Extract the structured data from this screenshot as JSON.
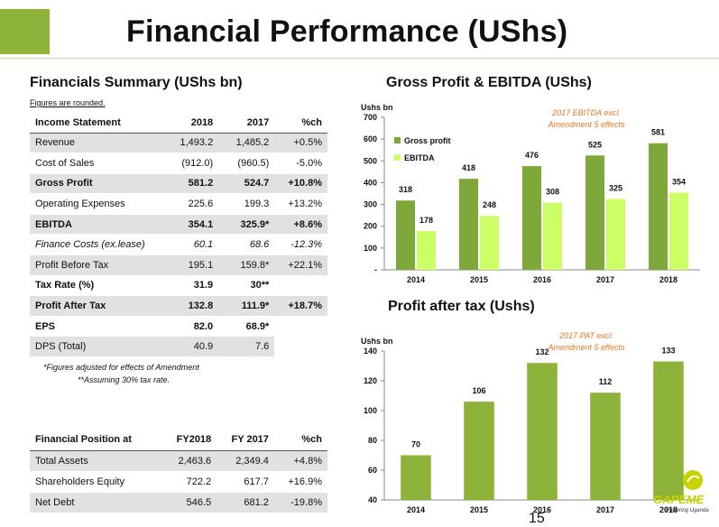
{
  "title": "Financial Performance (UShs)",
  "summary": {
    "heading": "Financials Summary (UShs bn)",
    "note": "Figures are rounded.",
    "income": {
      "headers": [
        "Income Statement",
        "2018",
        "2017",
        "%ch"
      ],
      "rows": [
        {
          "label": "Revenue",
          "y2018": "1,493.2",
          "y2017": "1,485.2",
          "ch": "+0.5%",
          "style": "shade"
        },
        {
          "label": "Cost of Sales",
          "y2018": "(912.0)",
          "y2017": "(960.5)",
          "ch": "-5.0%",
          "style": "white"
        },
        {
          "label": "Gross Profit",
          "y2018": "581.2",
          "y2017": "524.7",
          "ch": "+10.8%",
          "style": "shade bold"
        },
        {
          "label": "Operating Expenses",
          "y2018": "225.6",
          "y2017": "199.3",
          "ch": "+13.2%",
          "style": "white"
        },
        {
          "label": "EBITDA",
          "y2018": "354.1",
          "y2017": "325.9*",
          "ch": "+8.6%",
          "style": "shade bold"
        },
        {
          "label": "Finance Costs (ex.lease)",
          "y2018": "60.1",
          "y2017": "68.6",
          "ch": "-12.3%",
          "style": "white italic"
        },
        {
          "label": "Profit Before Tax",
          "y2018": "195.1",
          "y2017": "159.8*",
          "ch": "+22.1%",
          "style": "shade"
        },
        {
          "label": "Tax Rate (%)",
          "y2018": "31.9",
          "y2017": "30**",
          "ch": "",
          "style": "white bold"
        },
        {
          "label": "Profit After Tax",
          "y2018": "132.8",
          "y2017": "111.9*",
          "ch": "+18.7%",
          "style": "shade bold"
        },
        {
          "label": "EPS",
          "y2018": "82.0",
          "y2017": "68.9*",
          "ch": "",
          "style": "white bold"
        },
        {
          "label": "DPS (Total)",
          "y2018": "40.9",
          "y2017": "7.6",
          "ch": "",
          "style": "shade"
        }
      ]
    },
    "footnote1": "*Figures adjusted for effects of Amendment",
    "footnote2": "**Assuming 30% tax rate.",
    "position": {
      "headers": [
        "Financial Position at",
        "FY2018",
        "FY 2017",
        "%ch"
      ],
      "rows": [
        {
          "label": "Total Assets",
          "y2018": "2,463.6",
          "y2017": "2,349.4",
          "ch": "+4.8%",
          "style": "shade"
        },
        {
          "label": "Shareholders Equity",
          "y2018": "722.2",
          "y2017": "617.7",
          "ch": "+16.9%",
          "style": "white"
        },
        {
          "label": "Net Debt",
          "y2018": "546.5",
          "y2017": "681.2",
          "ch": "-19.8%",
          "style": "shade"
        }
      ]
    }
  },
  "chart_data": [
    {
      "type": "bar",
      "title": "Gross Profit & EBITDA (UShs)",
      "ylabel": "Ushs bn",
      "categories": [
        "2014",
        "2015",
        "2016",
        "2017",
        "2018"
      ],
      "ylim": [
        0,
        700
      ],
      "yticks": [
        "-",
        "100",
        "200",
        "300",
        "400",
        "500",
        "600",
        "700"
      ],
      "grid": false,
      "legend": "top-left",
      "annotation": [
        "2017 EBITDA excl.",
        "Amendment 5 effects"
      ],
      "series": [
        {
          "name": "Gross profit",
          "values": [
            318,
            418,
            476,
            525,
            581
          ],
          "color": "#7fa83a"
        },
        {
          "name": "EBITDA",
          "values": [
            178,
            248,
            308,
            325,
            354
          ],
          "color": "#ccff66"
        }
      ]
    },
    {
      "type": "bar",
      "title": "Profit after tax (Ushs)",
      "ylabel": "Ushs bn",
      "categories": [
        "2014",
        "2015",
        "2016",
        "2017",
        "2018"
      ],
      "ylim": [
        40,
        140
      ],
      "yticks": [
        "40",
        "60",
        "80",
        "100",
        "120",
        "140"
      ],
      "grid": false,
      "annotation": [
        "2017 PAT excl.",
        "Amendment 5 effects"
      ],
      "series": [
        {
          "values": [
            70,
            106,
            132,
            112,
            133
          ],
          "color": "#8db33a"
        }
      ]
    }
  ],
  "colors": {
    "accent": "#8db33a",
    "annotation": "#e87722",
    "shade": "#e1e1e1"
  },
  "logo": {
    "name": "GAPEME",
    "tagline": "Powering Uganda"
  },
  "page_number": "15"
}
